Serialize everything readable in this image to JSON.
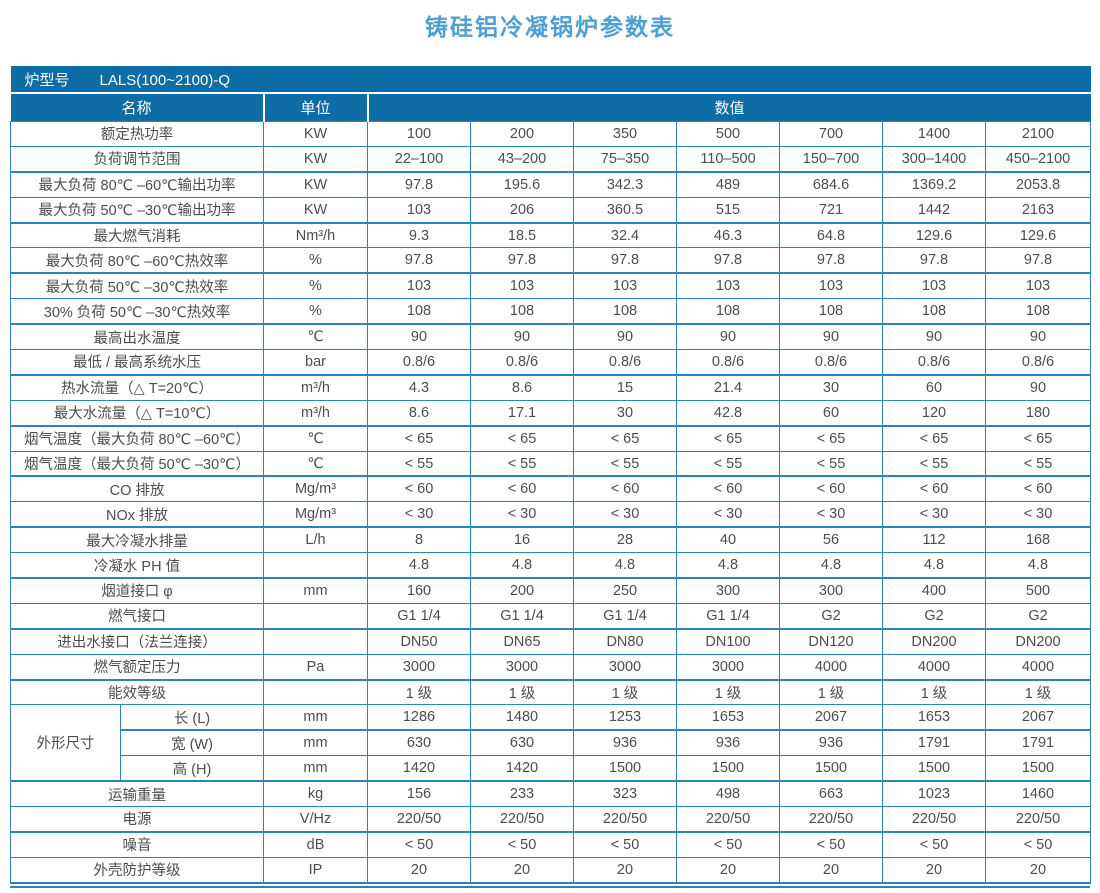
{
  "title": "铸硅铝冷凝锅炉参数表",
  "header": {
    "model_label": "炉型号",
    "model_value": "LALS(100~2100)-Q",
    "name_col": "名称",
    "unit_col": "单位",
    "value_col": "数值"
  },
  "dimension_group_label": "外形尺寸",
  "colors": {
    "header_bg": "#0e6da4",
    "border": "#2b84ba",
    "title": "#4e9fd4",
    "text": "#4d4d4d"
  },
  "chart_data": {
    "type": "table",
    "title": "铸硅铝冷凝锅炉参数表",
    "model": "LALS(100~2100)-Q",
    "columns": [
      "名称",
      "单位",
      "100",
      "200",
      "350",
      "500",
      "700",
      "1400",
      "2100"
    ]
  },
  "rows": [
    {
      "name": "额定热功率",
      "unit": "KW",
      "values": [
        "100",
        "200",
        "350",
        "500",
        "700",
        "1400",
        "2100"
      ]
    },
    {
      "name": "负荷调节范围",
      "unit": "KW",
      "values": [
        "22–100",
        "43–200",
        "75–350",
        "110–500",
        "150–700",
        "300–1400",
        "450–2100"
      ]
    },
    {
      "name": "最大负荷 80℃ –60℃输出功率",
      "unit": "KW",
      "values": [
        "97.8",
        "195.6",
        "342.3",
        "489",
        "684.6",
        "1369.2",
        "2053.8"
      ]
    },
    {
      "name": "最大负荷 50℃ –30℃输出功率",
      "unit": "KW",
      "values": [
        "103",
        "206",
        "360.5",
        "515",
        "721",
        "1442",
        "2163"
      ]
    },
    {
      "name": "最大燃气消耗",
      "unit": "Nm³/h",
      "values": [
        "9.3",
        "18.5",
        "32.4",
        "46.3",
        "64.8",
        "129.6",
        "129.6"
      ]
    },
    {
      "name": "最大负荷 80℃ –60℃热效率",
      "unit": "%",
      "values": [
        "97.8",
        "97.8",
        "97.8",
        "97.8",
        "97.8",
        "97.8",
        "97.8"
      ]
    },
    {
      "name": "最大负荷 50℃ –30℃热效率",
      "unit": "%",
      "values": [
        "103",
        "103",
        "103",
        "103",
        "103",
        "103",
        "103"
      ]
    },
    {
      "name": "30% 负荷 50℃ –30℃热效率",
      "unit": "%",
      "values": [
        "108",
        "108",
        "108",
        "108",
        "108",
        "108",
        "108"
      ]
    },
    {
      "name": "最高出水温度",
      "unit": "℃",
      "values": [
        "90",
        "90",
        "90",
        "90",
        "90",
        "90",
        "90"
      ]
    },
    {
      "name": "最低 / 最高系统水压",
      "unit": "bar",
      "values": [
        "0.8/6",
        "0.8/6",
        "0.8/6",
        "0.8/6",
        "0.8/6",
        "0.8/6",
        "0.8/6"
      ]
    },
    {
      "name": "热水流量（△ T=20℃）",
      "unit": "m³/h",
      "values": [
        "4.3",
        "8.6",
        "15",
        "21.4",
        "30",
        "60",
        "90"
      ]
    },
    {
      "name": "最大水流量（△ T=10℃）",
      "unit": "m³/h",
      "values": [
        "8.6",
        "17.1",
        "30",
        "42.8",
        "60",
        "120",
        "180"
      ]
    },
    {
      "name": "烟气温度（最大负荷 80℃ –60℃）",
      "unit": "℃",
      "values": [
        "< 65",
        "< 65",
        "< 65",
        "< 65",
        "< 65",
        "< 65",
        "< 65"
      ]
    },
    {
      "name": "烟气温度（最大负荷 50℃ –30℃）",
      "unit": "℃",
      "values": [
        "< 55",
        "< 55",
        "< 55",
        "< 55",
        "< 55",
        "< 55",
        "< 55"
      ]
    },
    {
      "name": "CO 排放",
      "unit": "Mg/m³",
      "values": [
        "< 60",
        "< 60",
        "< 60",
        "< 60",
        "< 60",
        "< 60",
        "< 60"
      ]
    },
    {
      "name": "NOx 排放",
      "unit": "Mg/m³",
      "values": [
        "< 30",
        "< 30",
        "< 30",
        "< 30",
        "< 30",
        "< 30",
        "< 30"
      ]
    },
    {
      "name": "最大冷凝水排量",
      "unit": "L/h",
      "values": [
        "8",
        "16",
        "28",
        "40",
        "56",
        "112",
        "168"
      ]
    },
    {
      "name": "冷凝水 PH 值",
      "unit": "",
      "values": [
        "4.8",
        "4.8",
        "4.8",
        "4.8",
        "4.8",
        "4.8",
        "4.8"
      ]
    },
    {
      "name": "烟道接口 φ",
      "unit": "mm",
      "values": [
        "160",
        "200",
        "250",
        "300",
        "300",
        "400",
        "500"
      ]
    },
    {
      "name": "燃气接口",
      "unit": "",
      "values": [
        "G1 1/4",
        "G1 1/4",
        "G1 1/4",
        "G1 1/4",
        "G2",
        "G2",
        "G2"
      ]
    },
    {
      "name": "进出水接口（法兰连接）",
      "unit": "",
      "values": [
        "DN50",
        "DN65",
        "DN80",
        "DN100",
        "DN120",
        "DN200",
        "DN200"
      ]
    },
    {
      "name": "燃气额定压力",
      "unit": "Pa",
      "values": [
        "3000",
        "3000",
        "3000",
        "3000",
        "4000",
        "4000",
        "4000"
      ]
    },
    {
      "name": "能效等级",
      "unit": "",
      "values": [
        "1 级",
        "1 级",
        "1 级",
        "1 级",
        "1 级",
        "1 级",
        "1 级"
      ]
    },
    {
      "name": "长 (L)",
      "unit": "mm",
      "group_start": true,
      "in_group": true,
      "values": [
        "1286",
        "1480",
        "1253",
        "1653",
        "2067",
        "1653",
        "2067"
      ]
    },
    {
      "name": "宽 (W)",
      "unit": "mm",
      "in_group": true,
      "values": [
        "630",
        "630",
        "936",
        "936",
        "936",
        "1791",
        "1791"
      ]
    },
    {
      "name": "高 (H)",
      "unit": "mm",
      "in_group": true,
      "values": [
        "1420",
        "1420",
        "1500",
        "1500",
        "1500",
        "1500",
        "1500"
      ]
    },
    {
      "name": "运输重量",
      "unit": "kg",
      "values": [
        "156",
        "233",
        "323",
        "498",
        "663",
        "1023",
        "1460"
      ]
    },
    {
      "name": "电源",
      "unit": "V/Hz",
      "values": [
        "220/50",
        "220/50",
        "220/50",
        "220/50",
        "220/50",
        "220/50",
        "220/50"
      ]
    },
    {
      "name": "噪音",
      "unit": "dB",
      "values": [
        "< 50",
        "< 50",
        "< 50",
        "< 50",
        "< 50",
        "< 50",
        "< 50"
      ]
    },
    {
      "name": "外壳防护等级",
      "unit": "IP",
      "values": [
        "20",
        "20",
        "20",
        "20",
        "20",
        "20",
        "20"
      ]
    }
  ]
}
